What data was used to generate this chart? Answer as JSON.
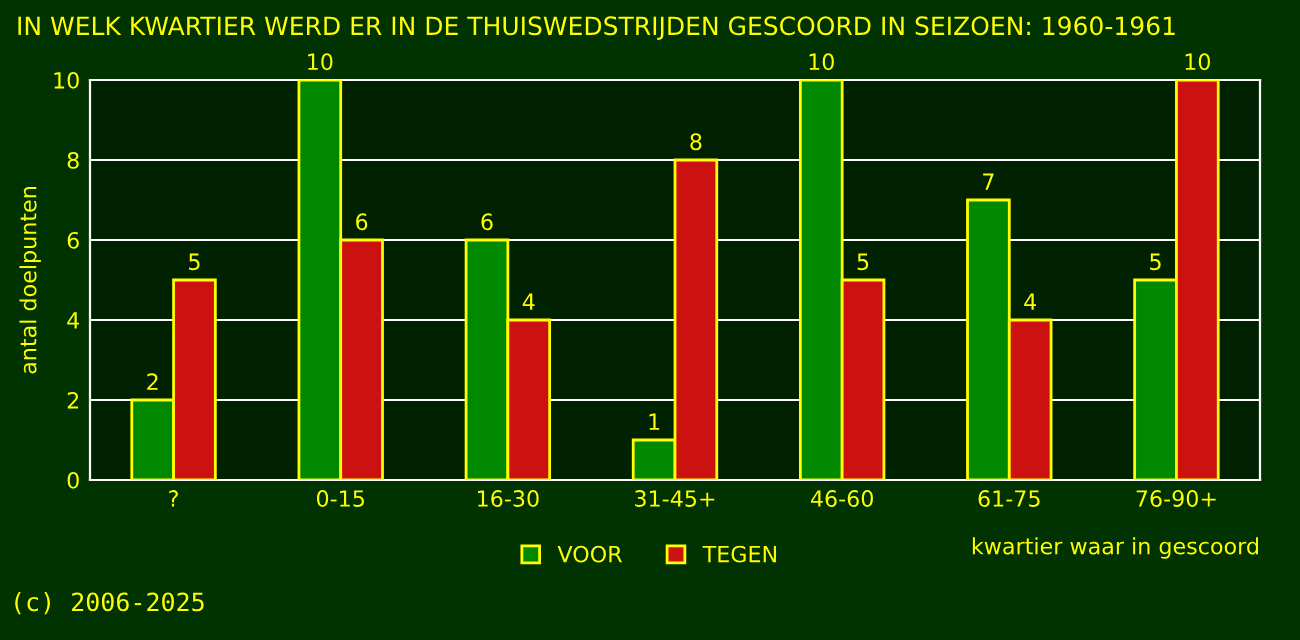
{
  "chart_data": {
    "type": "bar",
    "title": "IN WELK KWARTIER WERD ER IN DE THUISWEDSTRIJDEN GESCOORD IN SEIZOEN: 1960-1961",
    "xlabel": "kwartier waar in gescoord",
    "ylabel": "antal doelpunten",
    "categories": [
      "?",
      "0-15",
      "16-30",
      "31-45+",
      "46-60",
      "61-75",
      "76-90+"
    ],
    "series": [
      {
        "name": "VOOR",
        "color": "#008800",
        "values": [
          2,
          10,
          6,
          1,
          10,
          7,
          5
        ]
      },
      {
        "name": "TEGEN",
        "color": "#cc1111",
        "values": [
          5,
          6,
          4,
          8,
          5,
          4,
          10
        ]
      }
    ],
    "ylim": [
      0,
      10
    ],
    "yticks": [
      0,
      2,
      4,
      6,
      8,
      10
    ],
    "grid": "y",
    "legend": "bottom",
    "data_labels": true,
    "annotations": [
      "(c) 2006-2025"
    ]
  }
}
